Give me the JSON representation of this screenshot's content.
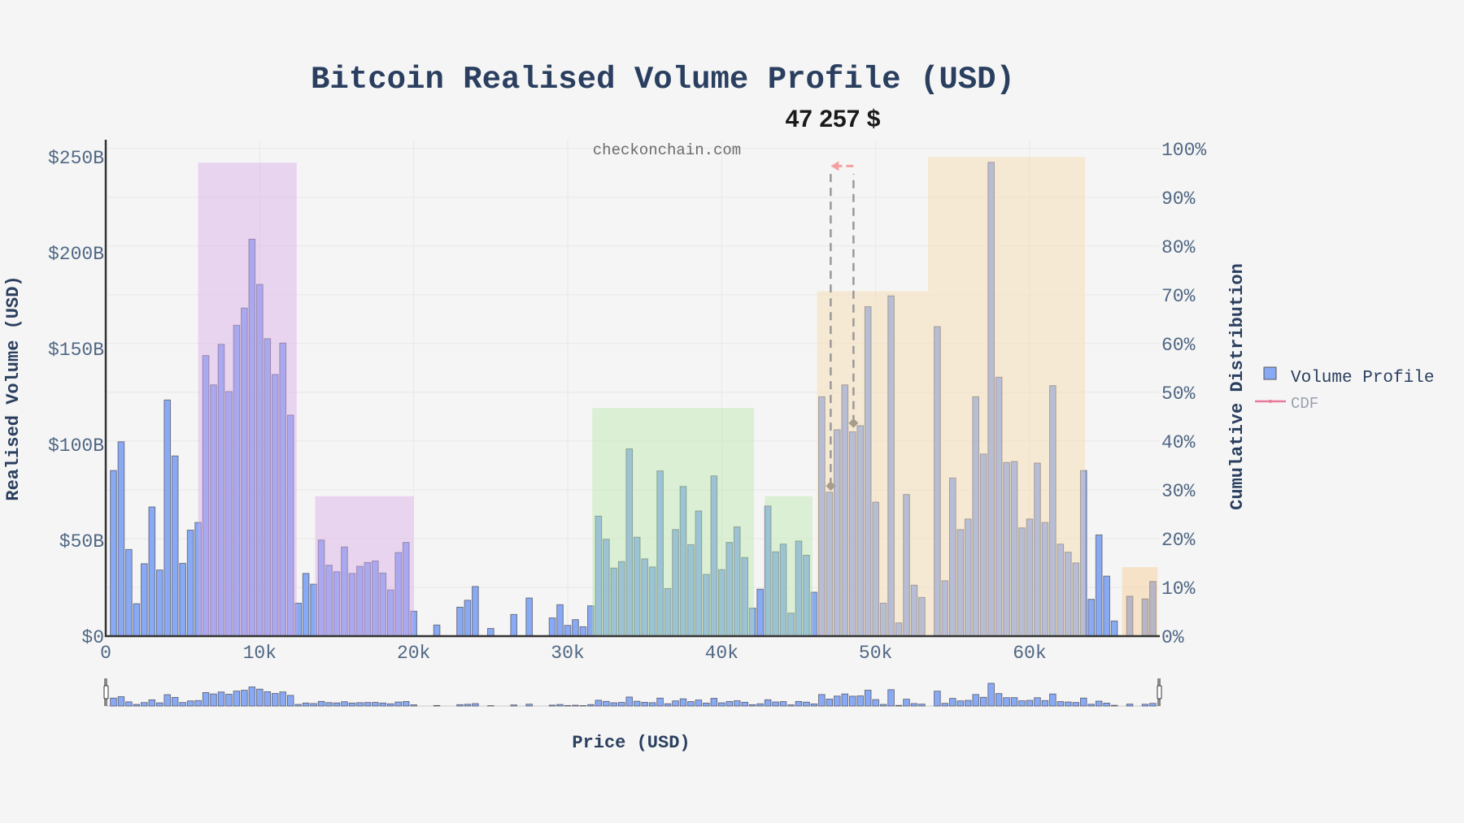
{
  "chart_data": {
    "type": "bar",
    "title": "Bitcoin Realised Volume Profile (USD)",
    "xlabel": "Price (USD)",
    "ylabel": "Realised Volume (USD)",
    "y2label": "Cumulative Distribution",
    "watermark": "checkonchain.com",
    "annotation": "47 257 $",
    "xlim": [
      0,
      68400
    ],
    "ylim": [
      0,
      259
    ],
    "y2lim": [
      0,
      101.8
    ],
    "grid": true,
    "legend_placement": "right",
    "x_ticks": [
      {
        "v": 0,
        "label": "0"
      },
      {
        "v": 10000,
        "label": "10k"
      },
      {
        "v": 20000,
        "label": "20k"
      },
      {
        "v": 30000,
        "label": "30k"
      },
      {
        "v": 40000,
        "label": "40k"
      },
      {
        "v": 50000,
        "label": "50k"
      },
      {
        "v": 60000,
        "label": "60k"
      }
    ],
    "y_ticks": [
      {
        "v": 0,
        "label": "$0"
      },
      {
        "v": 50,
        "label": "$50B"
      },
      {
        "v": 100,
        "label": "$100B"
      },
      {
        "v": 150,
        "label": "$150B"
      },
      {
        "v": 200,
        "label": "$200B"
      },
      {
        "v": 250,
        "label": "$250B"
      }
    ],
    "y2_ticks": [
      {
        "v": 0,
        "label": "0%"
      },
      {
        "v": 10,
        "label": "10%"
      },
      {
        "v": 20,
        "label": "20%"
      },
      {
        "v": 30,
        "label": "30%"
      },
      {
        "v": 40,
        "label": "40%"
      },
      {
        "v": 50,
        "label": "50%"
      },
      {
        "v": 60,
        "label": "60%"
      },
      {
        "v": 70,
        "label": "70%"
      },
      {
        "v": 80,
        "label": "80%"
      },
      {
        "v": 90,
        "label": "90%"
      },
      {
        "v": 100,
        "label": "100%"
      }
    ],
    "series": [
      {
        "name": "Volume Profile",
        "color": "#88aaf5",
        "unit": "USD billions",
        "x": [
          500,
          1000,
          1500,
          2000,
          2500,
          3000,
          3500,
          4000,
          4500,
          5000,
          5500,
          6000,
          6500,
          7000,
          7500,
          8000,
          8500,
          9000,
          9500,
          10000,
          10500,
          11000,
          11500,
          12000,
          12500,
          13000,
          13500,
          14000,
          14500,
          15000,
          15500,
          16000,
          16500,
          17000,
          17500,
          18000,
          18500,
          19000,
          19500,
          20000,
          20500,
          21000,
          21500,
          22000,
          22500,
          23000,
          23500,
          24000,
          24500,
          25000,
          25500,
          26000,
          26500,
          27000,
          27500,
          28000,
          28500,
          29000,
          29500,
          30000,
          30500,
          31000,
          31500,
          32000,
          32500,
          33000,
          33500,
          34000,
          34500,
          35000,
          35500,
          36000,
          36500,
          37000,
          37500,
          38000,
          38500,
          39000,
          39500,
          40000,
          40500,
          41000,
          41500,
          42000,
          42500,
          43000,
          43500,
          44000,
          44500,
          45000,
          45500,
          46000,
          46500,
          47000,
          47500,
          48000,
          48500,
          49000,
          49500,
          50000,
          50500,
          51000,
          51500,
          52000,
          52500,
          53000,
          53500,
          54000,
          54500,
          55000,
          55500,
          56000,
          56500,
          57000,
          57500,
          58000,
          58500,
          59000,
          59500,
          60000,
          60500,
          61000,
          61500,
          62000,
          62500,
          63000,
          63500,
          64000,
          64500,
          65000,
          65500,
          66000,
          66500,
          67000,
          67500,
          68000
        ],
        "values": [
          86.4,
          101.4,
          45.2,
          16.9,
          37.8,
          67.4,
          34.5,
          123.2,
          94.0,
          38.0,
          55.3,
          59.3,
          146.4,
          131.1,
          152.2,
          127.6,
          162.2,
          171.2,
          207.1,
          183.5,
          155.2,
          136.5,
          152.9,
          115.3,
          17.2,
          32.7,
          27.1,
          50.1,
          37.0,
          33.6,
          46.5,
          32.7,
          36.4,
          38.4,
          39.2,
          32.9,
          24.1,
          43.6,
          48.9,
          13.0,
          0,
          0,
          5.8,
          0,
          0,
          15.1,
          18.7,
          25.9,
          0,
          4.0,
          0,
          0,
          11.3,
          0,
          19.9,
          0,
          0,
          9.5,
          16.4,
          5.6,
          8.6,
          4.9,
          15.8,
          62.6,
          50.5,
          35.5,
          38.9,
          97.7,
          51.6,
          40.3,
          36.1,
          86.2,
          24.8,
          55.6,
          78.1,
          47.7,
          65.3,
          32.2,
          83.6,
          34.7,
          48.9,
          57.0,
          41.0,
          14.6,
          24.5,
          67.9,
          44.0,
          48.0,
          12.0,
          49.6,
          42.2,
          22.9,
          124.9,
          75.1,
          107.7,
          131.1,
          106.6,
          109.8,
          171.9,
          69.9,
          17.2,
          177.5,
          6.9,
          73.9,
          26.6,
          20.2,
          0,
          161.5,
          28.9,
          82.5,
          55.6,
          61.1,
          124.9,
          95.0,
          247.2,
          135.1,
          90.6,
          91.1,
          56.5,
          61.1,
          90.3,
          59.3,
          130.7,
          48.0,
          43.8,
          38.2,
          86.4,
          19.2,
          52.8,
          31.3,
          7.9,
          0,
          20.8,
          0,
          19.4,
          28.5
        ]
      },
      {
        "name": "CDF",
        "color": "#e8799a",
        "unit": "percent",
        "points": [
          {
            "x": 47080,
            "y": 30.8
          },
          {
            "x": 48560,
            "y": 43.7
          }
        ]
      }
    ],
    "zones": [
      {
        "x0": 6000,
        "x1": 12400,
        "top": 247,
        "color": "#d9a8e8"
      },
      {
        "x0": 13600,
        "x1": 20000,
        "top": 73,
        "color": "#d9a8e8"
      },
      {
        "x0": 31600,
        "x1": 42100,
        "top": 119,
        "color": "#b8e8a8"
      },
      {
        "x0": 42800,
        "x1": 45900,
        "top": 73,
        "color": "#b8e8a8"
      },
      {
        "x0": 46200,
        "x1": 53400,
        "top": 180,
        "color": "#f8d8a8"
      },
      {
        "x0": 53400,
        "x1": 63600,
        "top": 250,
        "color": "#f8d8a8"
      },
      {
        "x0": 66000,
        "x1": 68300,
        "top": 36,
        "color": "#f8c888"
      }
    ],
    "arrow": {
      "from_x": 48560,
      "to_x": 47080,
      "y": 96.4,
      "color": "#f4a0a0"
    },
    "range_slider": {
      "x_range": [
        0,
        68400
      ]
    }
  }
}
